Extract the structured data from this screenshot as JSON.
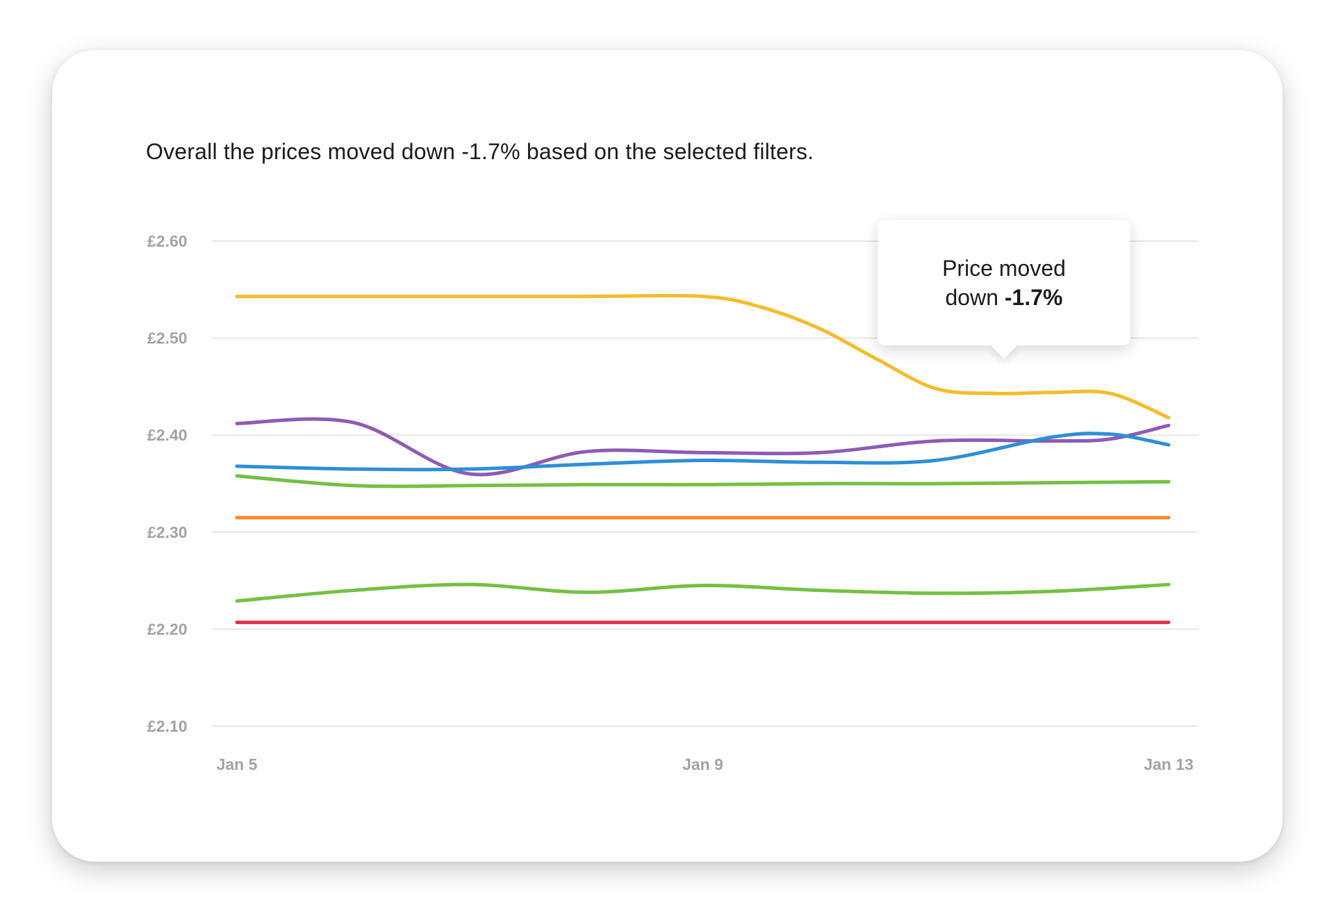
{
  "summary_text": "Overall the prices moved down -1.7% based on the selected filters.",
  "tooltip": {
    "line1": "Price moved",
    "line2_prefix": "down ",
    "line2_value": "-1.7%"
  },
  "chart_data": {
    "type": "line",
    "title": "",
    "xlabel": "",
    "ylabel": "",
    "ylim": [
      2.1,
      2.6
    ],
    "y_ticks": [
      "£2.60",
      "£2.50",
      "£2.40",
      "£2.30",
      "£2.20",
      "£2.10"
    ],
    "y_tick_values": [
      2.6,
      2.5,
      2.4,
      2.3,
      2.2,
      2.1
    ],
    "x_ticks": [
      "Jan 5",
      "Jan 9",
      "Jan 13"
    ],
    "x_tick_days": [
      5,
      9,
      13
    ],
    "x_range_days": [
      5,
      13
    ],
    "grid": true,
    "series": [
      {
        "color": "#f6bb2a",
        "points": [
          [
            5,
            2.543
          ],
          [
            6,
            2.543
          ],
          [
            7,
            2.543
          ],
          [
            8,
            2.543
          ],
          [
            9,
            2.543
          ],
          [
            9.5,
            2.532
          ],
          [
            10,
            2.51
          ],
          [
            10.5,
            2.478
          ],
          [
            11,
            2.448
          ],
          [
            11.5,
            2.443
          ],
          [
            12,
            2.444
          ],
          [
            12.5,
            2.443
          ],
          [
            13,
            2.418
          ]
        ]
      },
      {
        "color": "#8e5bb5",
        "points": [
          [
            5,
            2.412
          ],
          [
            6,
            2.413
          ],
          [
            7,
            2.36
          ],
          [
            8,
            2.383
          ],
          [
            9,
            2.382
          ],
          [
            10,
            2.382
          ],
          [
            11,
            2.394
          ],
          [
            12,
            2.394
          ],
          [
            12.5,
            2.396
          ],
          [
            13,
            2.41
          ]
        ]
      },
      {
        "color": "#2d8fd8",
        "points": [
          [
            5,
            2.368
          ],
          [
            6,
            2.365
          ],
          [
            7,
            2.365
          ],
          [
            8,
            2.37
          ],
          [
            9,
            2.374
          ],
          [
            10,
            2.372
          ],
          [
            11,
            2.374
          ],
          [
            12,
            2.398
          ],
          [
            12.5,
            2.401
          ],
          [
            13,
            2.39
          ]
        ]
      },
      {
        "color": "#74c043",
        "points": [
          [
            5,
            2.358
          ],
          [
            6,
            2.348
          ],
          [
            7,
            2.348
          ],
          [
            8,
            2.349
          ],
          [
            9,
            2.349
          ],
          [
            10,
            2.35
          ],
          [
            11,
            2.35
          ],
          [
            12,
            2.351
          ],
          [
            13,
            2.352
          ]
        ]
      },
      {
        "color": "#f28a2f",
        "points": [
          [
            5,
            2.315
          ],
          [
            13,
            2.315
          ]
        ]
      },
      {
        "color": "#74c043",
        "points": [
          [
            5,
            2.229
          ],
          [
            6,
            2.24
          ],
          [
            7,
            2.246
          ],
          [
            8,
            2.238
          ],
          [
            9,
            2.245
          ],
          [
            10,
            2.24
          ],
          [
            11,
            2.237
          ],
          [
            12,
            2.239
          ],
          [
            13,
            2.246
          ]
        ]
      },
      {
        "color": "#e03148",
        "points": [
          [
            5,
            2.207
          ],
          [
            13,
            2.207
          ]
        ]
      }
    ]
  }
}
